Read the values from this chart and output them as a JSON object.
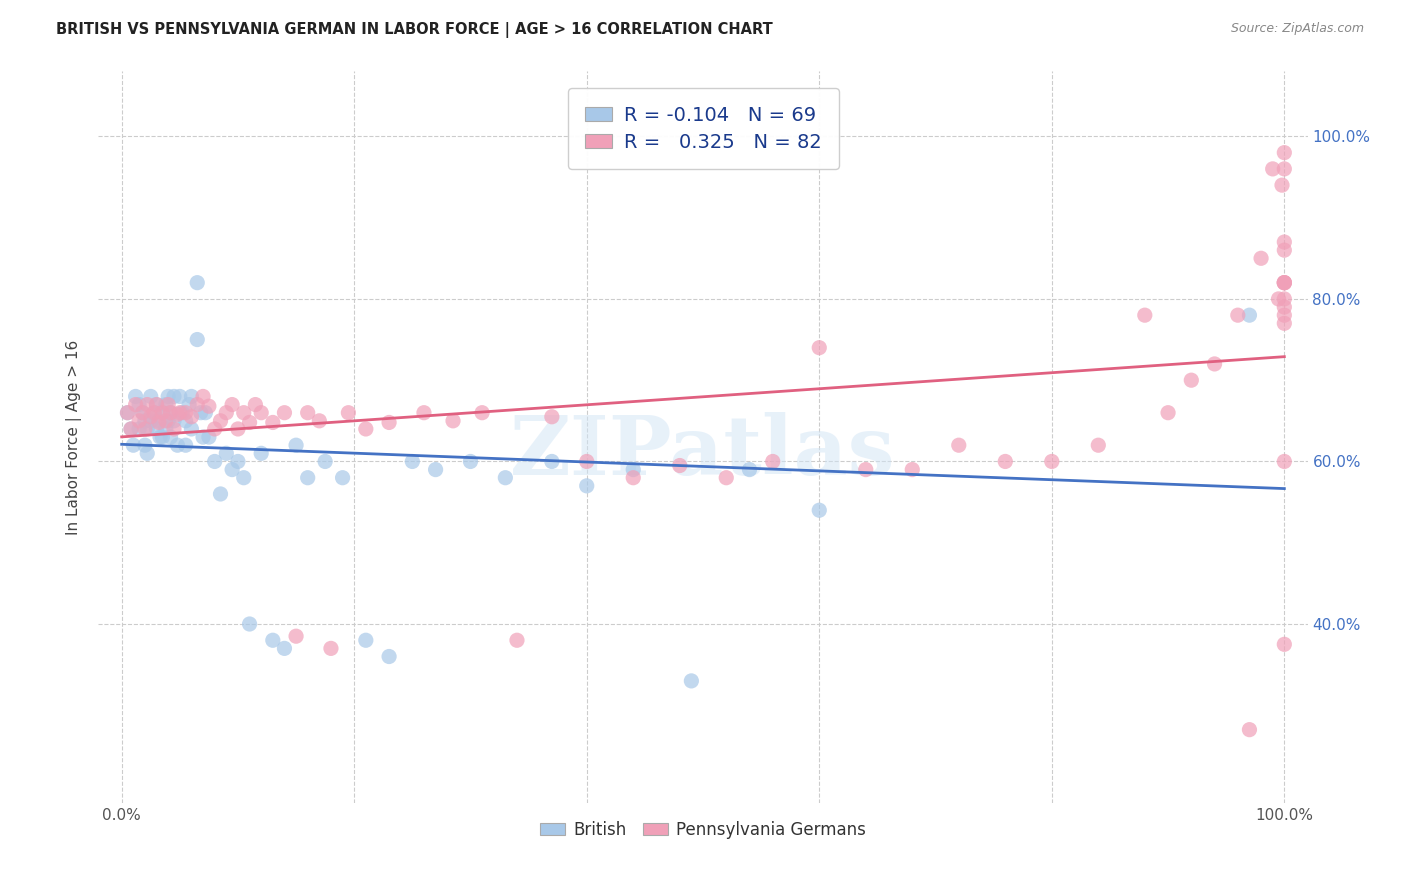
{
  "title": "BRITISH VS PENNSYLVANIA GERMAN IN LABOR FORCE | AGE > 16 CORRELATION CHART",
  "source": "Source: ZipAtlas.com",
  "ylabel": "In Labor Force | Age > 16",
  "yticks": [
    "40.0%",
    "60.0%",
    "80.0%",
    "100.0%"
  ],
  "ytick_values": [
    0.4,
    0.6,
    0.8,
    1.0
  ],
  "xlim": [
    -0.02,
    1.02
  ],
  "ylim": [
    0.18,
    1.08
  ],
  "grid_yticks": [
    0.4,
    0.6,
    0.8,
    1.0
  ],
  "blue_color": "#A8C8E8",
  "pink_color": "#F0A0B8",
  "blue_line_color": "#4472C4",
  "pink_line_color": "#E06080",
  "blue_r": -0.104,
  "pink_r": 0.325,
  "blue_n": 69,
  "pink_n": 82,
  "watermark": "ZIPatlas",
  "blue_scatter_x": [
    0.005,
    0.008,
    0.01,
    0.012,
    0.015,
    0.015,
    0.018,
    0.02,
    0.02,
    0.022,
    0.022,
    0.025,
    0.025,
    0.028,
    0.03,
    0.03,
    0.032,
    0.033,
    0.035,
    0.035,
    0.038,
    0.038,
    0.04,
    0.04,
    0.042,
    0.042,
    0.045,
    0.045,
    0.048,
    0.05,
    0.052,
    0.055,
    0.055,
    0.058,
    0.06,
    0.06,
    0.065,
    0.065,
    0.068,
    0.07,
    0.072,
    0.075,
    0.08,
    0.085,
    0.09,
    0.095,
    0.1,
    0.105,
    0.11,
    0.12,
    0.13,
    0.14,
    0.15,
    0.16,
    0.175,
    0.19,
    0.21,
    0.23,
    0.25,
    0.27,
    0.3,
    0.33,
    0.37,
    0.4,
    0.44,
    0.49,
    0.54,
    0.6,
    0.97
  ],
  "blue_scatter_y": [
    0.66,
    0.64,
    0.62,
    0.68,
    0.67,
    0.64,
    0.66,
    0.65,
    0.62,
    0.64,
    0.61,
    0.68,
    0.65,
    0.66,
    0.67,
    0.64,
    0.65,
    0.63,
    0.66,
    0.63,
    0.67,
    0.64,
    0.68,
    0.65,
    0.66,
    0.63,
    0.68,
    0.65,
    0.62,
    0.68,
    0.66,
    0.65,
    0.62,
    0.67,
    0.68,
    0.64,
    0.82,
    0.75,
    0.66,
    0.63,
    0.66,
    0.63,
    0.6,
    0.56,
    0.61,
    0.59,
    0.6,
    0.58,
    0.4,
    0.61,
    0.38,
    0.37,
    0.62,
    0.58,
    0.6,
    0.58,
    0.38,
    0.36,
    0.6,
    0.59,
    0.6,
    0.58,
    0.6,
    0.57,
    0.59,
    0.33,
    0.59,
    0.54,
    0.78
  ],
  "pink_scatter_x": [
    0.005,
    0.008,
    0.012,
    0.015,
    0.018,
    0.02,
    0.022,
    0.025,
    0.028,
    0.03,
    0.032,
    0.035,
    0.038,
    0.04,
    0.042,
    0.045,
    0.048,
    0.05,
    0.055,
    0.06,
    0.065,
    0.07,
    0.075,
    0.08,
    0.085,
    0.09,
    0.095,
    0.1,
    0.105,
    0.11,
    0.115,
    0.12,
    0.13,
    0.14,
    0.15,
    0.16,
    0.17,
    0.18,
    0.195,
    0.21,
    0.23,
    0.26,
    0.285,
    0.31,
    0.34,
    0.37,
    0.4,
    0.44,
    0.48,
    0.52,
    0.56,
    0.6,
    0.64,
    0.68,
    0.72,
    0.76,
    0.8,
    0.84,
    0.88,
    0.9,
    0.92,
    0.94,
    0.96,
    0.97,
    0.98,
    0.99,
    0.995,
    0.998,
    1.0,
    1.0,
    1.0,
    1.0,
    1.0,
    1.0,
    1.0,
    1.0,
    1.0,
    1.0,
    1.0,
    1.0,
    1.0,
    1.0
  ],
  "pink_scatter_y": [
    0.66,
    0.64,
    0.67,
    0.65,
    0.66,
    0.64,
    0.67,
    0.655,
    0.66,
    0.67,
    0.648,
    0.66,
    0.65,
    0.67,
    0.66,
    0.64,
    0.658,
    0.66,
    0.66,
    0.655,
    0.67,
    0.68,
    0.668,
    0.64,
    0.65,
    0.66,
    0.67,
    0.64,
    0.66,
    0.648,
    0.67,
    0.66,
    0.648,
    0.66,
    0.385,
    0.66,
    0.65,
    0.37,
    0.66,
    0.64,
    0.648,
    0.66,
    0.65,
    0.66,
    0.38,
    0.655,
    0.6,
    0.58,
    0.595,
    0.58,
    0.6,
    0.74,
    0.59,
    0.59,
    0.62,
    0.6,
    0.6,
    0.62,
    0.78,
    0.66,
    0.7,
    0.72,
    0.78,
    0.27,
    0.85,
    0.96,
    0.8,
    0.94,
    0.78,
    0.82,
    0.82,
    0.6,
    0.375,
    0.82,
    0.8,
    0.86,
    0.77,
    0.96,
    0.79,
    0.82,
    0.87,
    0.98
  ]
}
